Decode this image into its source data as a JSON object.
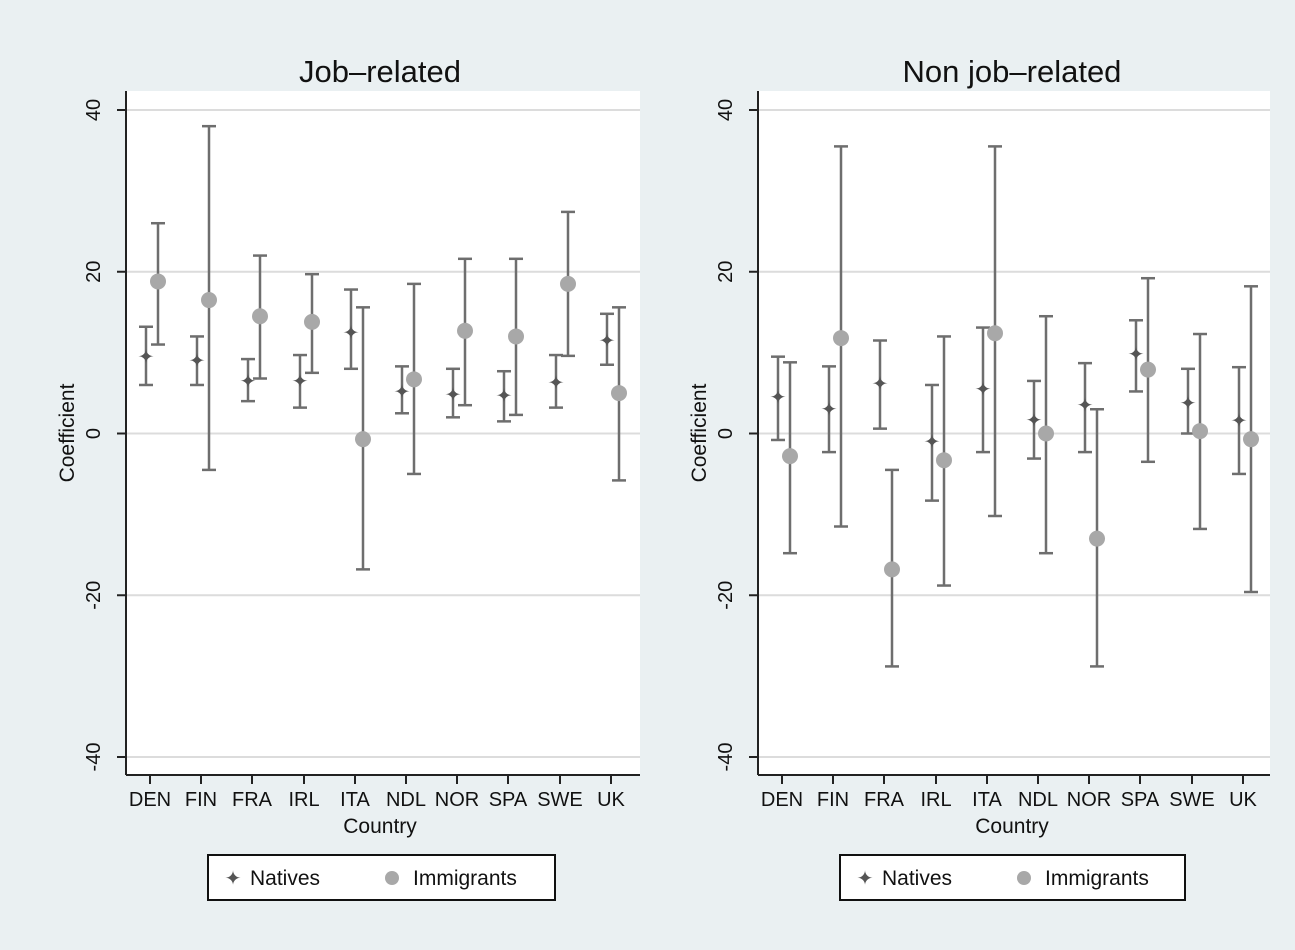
{
  "colors": {
    "background": "#eaf0f2",
    "plot_background": "#ffffff",
    "gridline": "#dcdcdc",
    "natives": "#555555",
    "immigrants": "#a8a8a8",
    "errorbar": "#6e6e6e",
    "axis": "#222222"
  },
  "chart_data": [
    {
      "type": "scatter",
      "title": "Job–related",
      "xlabel": "Country",
      "ylabel": "Coefficient",
      "categories": [
        "DEN",
        "FIN",
        "FRA",
        "IRL",
        "ITA",
        "NDL",
        "NOR",
        "SPA",
        "SWE",
        "UK"
      ],
      "ylim": [
        -40,
        40
      ],
      "yticks": [
        -40,
        -20,
        0,
        20,
        40
      ],
      "grid": true,
      "legend": "bottom",
      "series": [
        {
          "name": "Natives",
          "color": "#555555",
          "values": [
            9.5,
            9.0,
            6.5,
            6.5,
            12.5,
            5.2,
            4.8,
            4.7,
            6.3,
            11.5
          ],
          "lower": [
            6.0,
            6.0,
            4.0,
            3.2,
            8.0,
            2.5,
            2.0,
            1.5,
            3.2,
            8.5
          ],
          "upper": [
            13.2,
            12.0,
            9.2,
            9.7,
            17.8,
            8.3,
            8.0,
            7.7,
            9.7,
            14.8
          ]
        },
        {
          "name": "Immigrants",
          "color": "#a8a8a8",
          "values": [
            18.8,
            16.5,
            14.5,
            13.8,
            -0.7,
            6.7,
            12.7,
            12.0,
            18.5,
            5.0
          ],
          "lower": [
            11.0,
            -4.5,
            6.8,
            7.5,
            -16.8,
            -5.0,
            3.5,
            2.3,
            9.6,
            -5.8
          ],
          "upper": [
            26.0,
            38.0,
            22.0,
            19.7,
            15.6,
            18.5,
            21.6,
            21.6,
            27.4,
            15.6
          ]
        }
      ]
    },
    {
      "type": "scatter",
      "title": "Non job–related",
      "xlabel": "Country",
      "ylabel": "Coefficient",
      "categories": [
        "DEN",
        "FIN",
        "FRA",
        "IRL",
        "ITA",
        "NDL",
        "NOR",
        "SPA",
        "SWE",
        "UK"
      ],
      "ylim": [
        -40,
        40
      ],
      "yticks": [
        -40,
        -20,
        0,
        20,
        40
      ],
      "grid": true,
      "legend": "bottom",
      "series": [
        {
          "name": "Natives",
          "color": "#555555",
          "values": [
            4.5,
            3.0,
            6.2,
            -1.0,
            5.5,
            1.7,
            3.5,
            9.8,
            3.8,
            1.6
          ],
          "lower": [
            -0.8,
            -2.3,
            0.6,
            -8.3,
            -2.3,
            -3.1,
            -2.3,
            5.2,
            0.0,
            -5.0
          ],
          "upper": [
            9.5,
            8.3,
            11.5,
            6.0,
            13.1,
            6.5,
            8.7,
            14.0,
            8.0,
            8.2
          ],
          "ci_visible": [
            true,
            true,
            true,
            true,
            true,
            true,
            true,
            true,
            true,
            true
          ]
        },
        {
          "name": "Immigrants",
          "color": "#a8a8a8",
          "values": [
            -2.8,
            11.8,
            -16.8,
            -3.3,
            12.4,
            0.0,
            -13.0,
            7.9,
            0.3,
            -0.7
          ],
          "lower": [
            -14.8,
            -11.5,
            -28.8,
            -18.8,
            -10.2,
            -14.8,
            -28.8,
            -3.5,
            -11.8,
            -19.6
          ],
          "upper": [
            8.8,
            35.5,
            -4.5,
            12.0,
            35.5,
            14.5,
            3.0,
            19.2,
            12.3,
            18.2
          ]
        }
      ]
    }
  ]
}
